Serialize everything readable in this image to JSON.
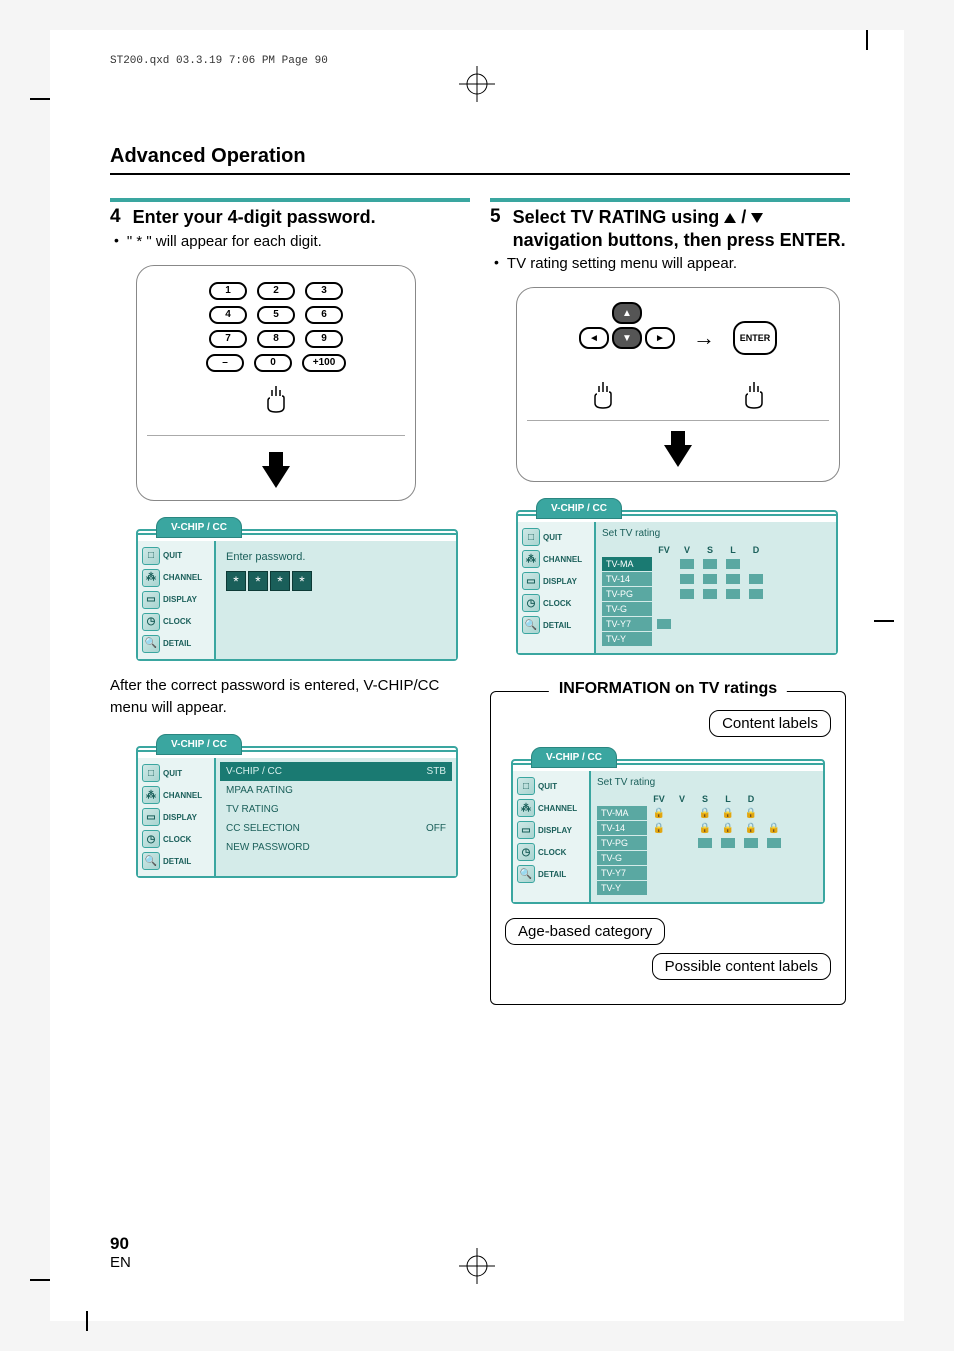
{
  "header_stamp": "ST200.qxd  03.3.19 7:06 PM  Page 90",
  "section_title": "Advanced Operation",
  "page_number": "90",
  "page_lang": "EN",
  "colors": {
    "teal": "#3aa6a0",
    "osd_dark": "#1a5f5a",
    "osd_light": "#d4ebe9",
    "osd_side": "#e8f4f3"
  },
  "left": {
    "step_num": "4",
    "step_title": "Enter your 4-digit password.",
    "step_sub": "\" * \" will appear for each digit.",
    "keypad": [
      [
        "1",
        "2",
        "3"
      ],
      [
        "4",
        "5",
        "6"
      ],
      [
        "7",
        "8",
        "9"
      ],
      [
        "–",
        "0",
        "+100"
      ]
    ],
    "osd1": {
      "tab": "V-CHIP / CC",
      "side": [
        "QUIT",
        "CHANNEL",
        "DISPLAY",
        "CLOCK",
        "DETAIL"
      ],
      "prompt": "Enter password.",
      "stars": [
        "*",
        "*",
        "*",
        "*"
      ]
    },
    "after_text": "After the correct password is entered, V-CHIP/CC menu will appear.",
    "osd2": {
      "tab": "V-CHIP / CC",
      "side": [
        "QUIT",
        "CHANNEL",
        "DISPLAY",
        "CLOCK",
        "DETAIL"
      ],
      "rows": [
        {
          "label": "V-CHIP / CC",
          "val": "STB",
          "hl": true
        },
        {
          "label": "MPAA RATING",
          "val": "",
          "hl": false
        },
        {
          "label": "TV RATING",
          "val": "",
          "hl": false
        },
        {
          "label": "CC SELECTION",
          "val": "OFF",
          "hl": false
        },
        {
          "label": "NEW PASSWORD",
          "val": "",
          "hl": false
        }
      ]
    }
  },
  "right": {
    "step_num": "5",
    "step_title_a": "Select TV RATING using ",
    "step_title_b": "navigation buttons, then press ENTER.",
    "step_sub": "TV rating setting menu will appear.",
    "enter_label": "ENTER",
    "osd3": {
      "tab": "V-CHIP / CC",
      "side": [
        "QUIT",
        "CHANNEL",
        "DISPLAY",
        "CLOCK",
        "DETAIL"
      ],
      "title": "Set TV rating",
      "cols": [
        "FV",
        "V",
        "S",
        "L",
        "D"
      ],
      "rows": [
        {
          "label": "TV-MA",
          "hl": true,
          "cells": [
            "",
            "b",
            "b",
            "b",
            ""
          ]
        },
        {
          "label": "TV-14",
          "hl": false,
          "cells": [
            "",
            "b",
            "b",
            "b",
            "b"
          ]
        },
        {
          "label": "TV-PG",
          "hl": false,
          "cells": [
            "",
            "b",
            "b",
            "b",
            "b"
          ]
        },
        {
          "label": "TV-G",
          "hl": false,
          "cells": [
            "",
            "",
            "",
            "",
            ""
          ]
        },
        {
          "label": "TV-Y7",
          "hl": false,
          "cells": [
            "b",
            "",
            "",
            "",
            ""
          ]
        },
        {
          "label": "TV-Y",
          "hl": false,
          "cells": [
            "",
            "",
            "",
            "",
            ""
          ]
        }
      ]
    },
    "info_title": "INFORMATION on TV ratings",
    "callout_content": "Content labels",
    "callout_age": "Age-based category",
    "callout_possible": "Possible content labels",
    "osd4": {
      "tab": "V-CHIP / CC",
      "side": [
        "QUIT",
        "CHANNEL",
        "DISPLAY",
        "CLOCK",
        "DETAIL"
      ],
      "title": "Set TV rating",
      "cols": [
        "FV",
        "V",
        "S",
        "L",
        "D"
      ],
      "rows": [
        {
          "label": "TV-MA",
          "hl": false,
          "cells": [
            "l",
            "",
            "l",
            "l",
            "l",
            ""
          ]
        },
        {
          "label": "TV-14",
          "hl": false,
          "cells": [
            "l",
            "",
            "l",
            "l",
            "l",
            "l"
          ]
        },
        {
          "label": "TV-PG",
          "hl": false,
          "cells": [
            "",
            "",
            "b",
            "b",
            "b",
            "b"
          ]
        },
        {
          "label": "TV-G",
          "hl": false,
          "cells": [
            "",
            "",
            "",
            "",
            "",
            ""
          ]
        },
        {
          "label": "TV-Y7",
          "hl": false,
          "cells": [
            "",
            "",
            "",
            "",
            "",
            ""
          ]
        },
        {
          "label": "TV-Y",
          "hl": false,
          "cells": [
            "",
            "",
            "",
            "",
            "",
            ""
          ]
        }
      ]
    }
  }
}
